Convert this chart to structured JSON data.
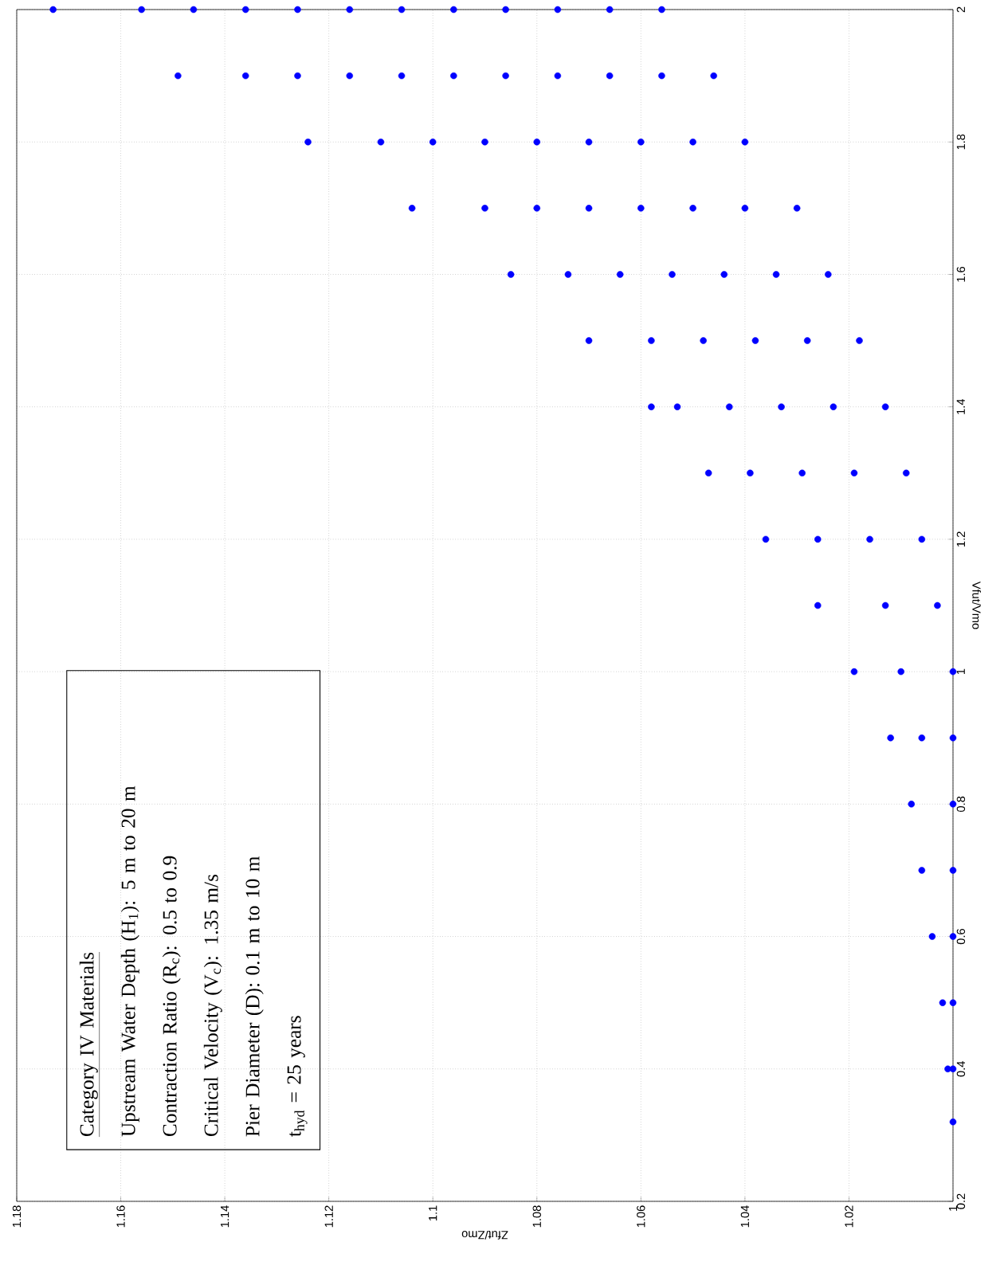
{
  "chart_data": {
    "type": "scatter",
    "xlabel": "Zfut/Zmo",
    "ylabel": "Vfut/Vmo",
    "series": [
      {
        "color": "#0000ff",
        "x": [
          1.0,
          1.0,
          1.001,
          1.0,
          1.002,
          1.0,
          1.004,
          1.0,
          1.006,
          1.0,
          1.008,
          1.0,
          1.006,
          1.012,
          1.0,
          1.01,
          1.019,
          1.003,
          1.013,
          1.026,
          1.006,
          1.016,
          1.026,
          1.036,
          1.009,
          1.019,
          1.029,
          1.039,
          1.047,
          1.013,
          1.023,
          1.033,
          1.043,
          1.053,
          1.058,
          1.018,
          1.028,
          1.038,
          1.048,
          1.058,
          1.07,
          1.024,
          1.034,
          1.044,
          1.054,
          1.064,
          1.074,
          1.085,
          1.03,
          1.04,
          1.05,
          1.06,
          1.07,
          1.08,
          1.09,
          1.104,
          1.04,
          1.05,
          1.06,
          1.07,
          1.08,
          1.09,
          1.1,
          1.11,
          1.124,
          1.046,
          1.056,
          1.066,
          1.076,
          1.086,
          1.096,
          1.106,
          1.116,
          1.126,
          1.136,
          1.149,
          1.056,
          1.066,
          1.076,
          1.086,
          1.096,
          1.106,
          1.116,
          1.126,
          1.136,
          1.146,
          1.156,
          1.173
        ],
        "values": [
          0.32,
          0.4,
          0.4,
          0.5,
          0.5,
          0.6,
          0.6,
          0.7,
          0.7,
          0.8,
          0.8,
          0.9,
          0.9,
          0.9,
          1.0,
          1.0,
          1.0,
          1.1,
          1.1,
          1.1,
          1.2,
          1.2,
          1.2,
          1.2,
          1.3,
          1.3,
          1.3,
          1.3,
          1.3,
          1.4,
          1.4,
          1.4,
          1.4,
          1.4,
          1.4,
          1.5,
          1.5,
          1.5,
          1.5,
          1.5,
          1.5,
          1.6,
          1.6,
          1.6,
          1.6,
          1.6,
          1.6,
          1.6,
          1.7,
          1.7,
          1.7,
          1.7,
          1.7,
          1.7,
          1.7,
          1.7,
          1.8,
          1.8,
          1.8,
          1.8,
          1.8,
          1.8,
          1.8,
          1.8,
          1.8,
          1.9,
          1.9,
          1.9,
          1.9,
          1.9,
          1.9,
          1.9,
          1.9,
          1.9,
          1.9,
          1.9,
          2.0,
          2.0,
          2.0,
          2.0,
          2.0,
          2.0,
          2.0,
          2.0,
          2.0,
          2.0,
          2.0,
          2.0
        ]
      }
    ],
    "xlim": [
      1.18,
      1
    ],
    "xticks": [
      1,
      1.02,
      1.04,
      1.06,
      1.08,
      1.1,
      1.12,
      1.14,
      1.16,
      1.18
    ],
    "ylim": [
      0.2,
      2
    ],
    "yticks": [
      0.2,
      0.4,
      0.6,
      0.8,
      1,
      1.2,
      1.4,
      1.6,
      1.8,
      2
    ],
    "grid": true,
    "annotations": [
      "Category IV Materials",
      "Upstream Water Depth (H$_{1}$): 5 m to 20 m",
      "Contraction Ratio (R$_{c}$): 0.5 to 0.9",
      "Critical Velocity (V$_{c}$): 1.35 m/s",
      "Pier Diameter (D): 0.1 m to 10 m",
      "t$_{hyd}$ = 25 years"
    ]
  }
}
